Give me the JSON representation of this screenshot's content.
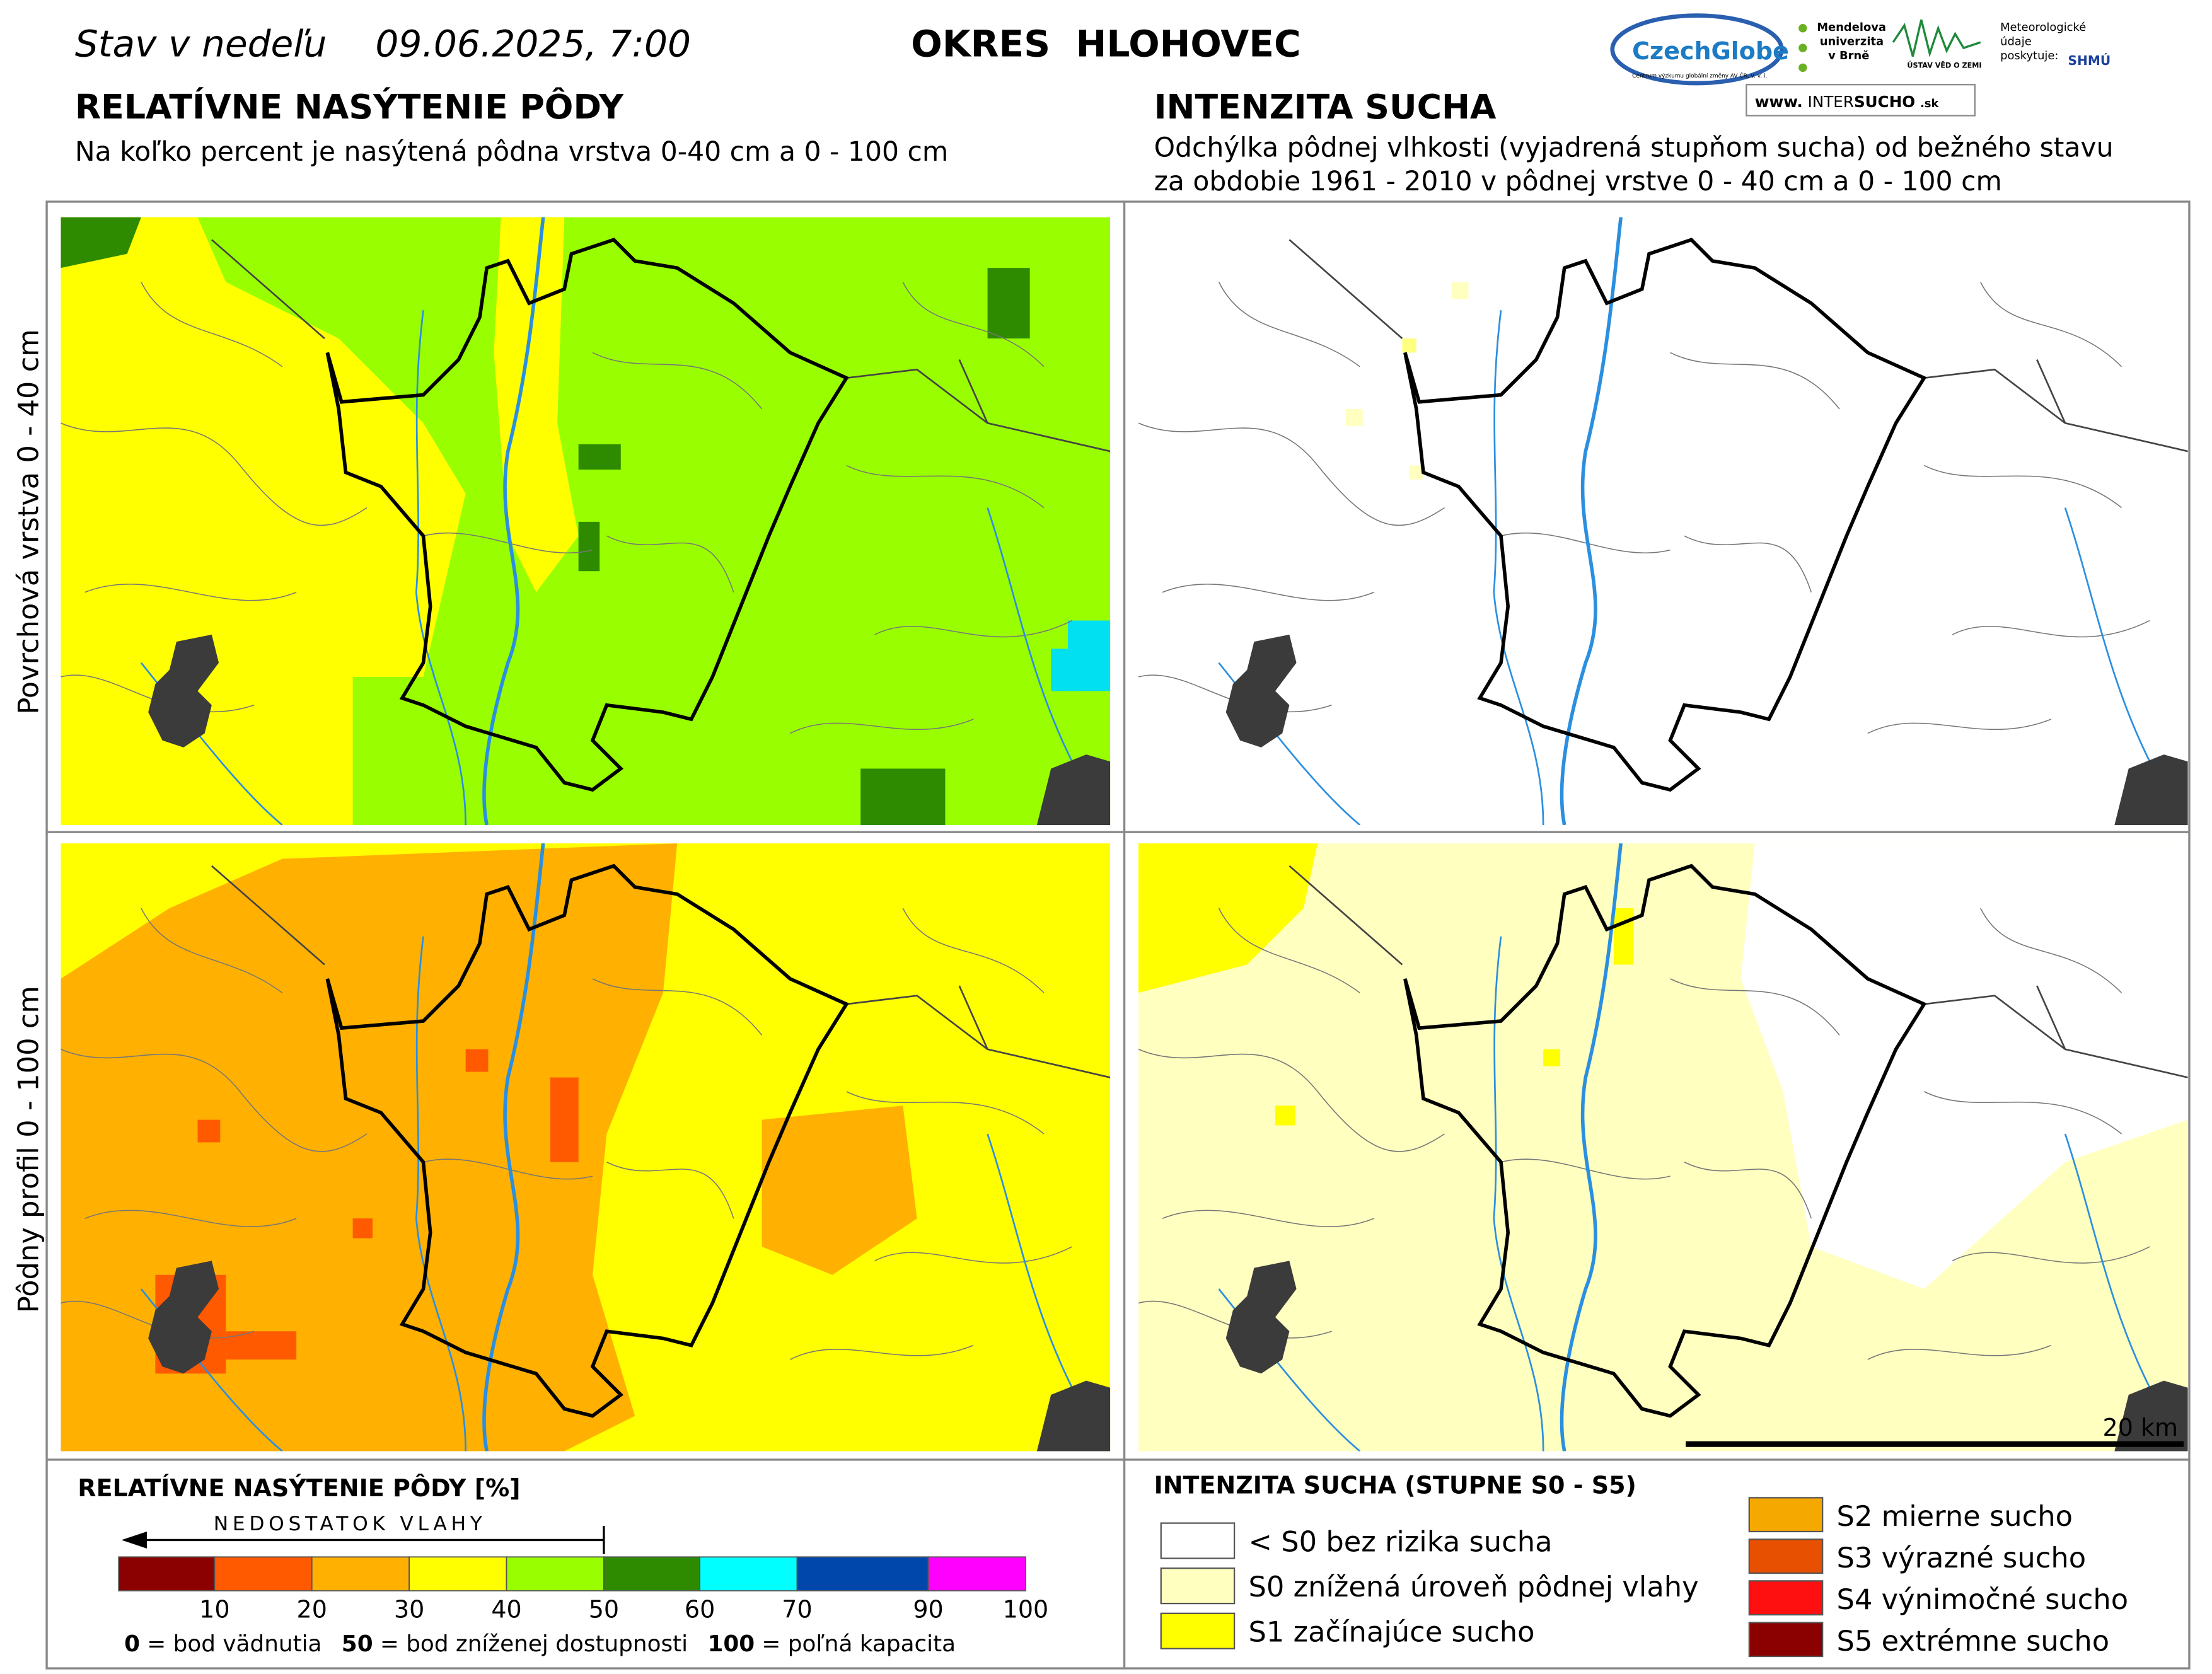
{
  "header": {
    "date_prefix": "Stav v nedeľu",
    "date": "09.06.2025, 7:00",
    "district": "OKRES  HLOHOVEC",
    "logos": {
      "czechglobe": "CzechGlobe",
      "czechglobe_sub": "Centrum výzkumu globální změny AV ČR, v. v. i.",
      "mendel": [
        "Mendelova",
        "univerzita",
        "v Brně"
      ],
      "ustav": "ÚSTAV VĚD O ZEMI",
      "meteo": [
        "Meteorologické",
        "údaje",
        "poskytuje:"
      ],
      "shmu": "SHMÚ",
      "intersucho_pre": "www.",
      "intersucho_a": "INTER",
      "intersucho_b": "SUCHO",
      "intersucho_post": ".sk"
    }
  },
  "left": {
    "title": "RELATÍVNE NASÝTENIE PÔDY",
    "subtitle": "Na koľko percent je nasýtená pôdna vrstva 0-40 cm a 0 - 100 cm"
  },
  "right": {
    "title": "INTENZITA SUCHA",
    "subtitle": [
      "Odchýlka pôdnej vlhkosti (vyjadrená stupňom sucha) od bežného stavu",
      "za obdobie 1961 - 2010 v pôdnej vrstve 0 - 40 cm a 0 - 100 cm"
    ]
  },
  "rows": [
    "Povrchová vrstva 0 - 40 cm",
    "Pôdny profil 0 - 100 cm"
  ],
  "scale_label": "20 km",
  "legend_left": {
    "title": "RELATÍVNE NASÝTENIE PÔDY [%]",
    "arrow_label": "NEDOSTATOK VLAHY",
    "colors": [
      "#8b0000",
      "#ff5a00",
      "#ffb000",
      "#ffff00",
      "#99ff00",
      "#2e8b00",
      "#00ffff",
      "#0047ab",
      "#ff00ff"
    ],
    "ticks": [
      10,
      20,
      30,
      40,
      50,
      60,
      70,
      90,
      100
    ],
    "notes": [
      {
        "value": "0",
        "text": "= bod vädnutia"
      },
      {
        "value": "50",
        "text": "= bod zníženej dostupnosti"
      },
      {
        "value": "100",
        "text": "= poľná kapacita"
      }
    ]
  },
  "legend_right": {
    "title": "INTENZITA SUCHA (STUPNE S0 - S5)",
    "items": [
      {
        "color": "#ffffff",
        "label": "< S0 bez rizika sucha"
      },
      {
        "color": "#ffffc0",
        "label": "S0 znížená úroveň pôdnej vlahy"
      },
      {
        "color": "#ffff00",
        "label": "S1 začínajúce sucho"
      },
      {
        "color": "#f5a800",
        "label": "S2 mierne sucho"
      },
      {
        "color": "#e65000",
        "label": "S3 výrazné sucho"
      },
      {
        "color": "#ff1010",
        "label": "S4 výnimočné sucho"
      },
      {
        "color": "#8b0000",
        "label": "S5 extrémne sucho"
      }
    ]
  }
}
